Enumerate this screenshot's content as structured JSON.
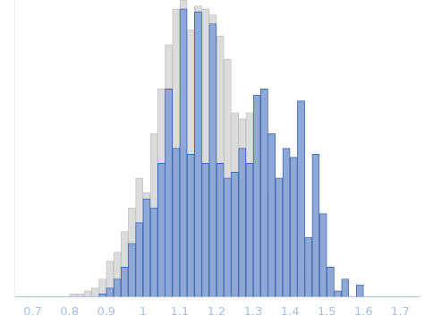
{
  "chart_data": {
    "type": "histogram",
    "bins": [
      0.8,
      0.82,
      0.84,
      0.86,
      0.88,
      0.9,
      0.92,
      0.94,
      0.96,
      0.98,
      1.0,
      1.02,
      1.04,
      1.06,
      1.08,
      1.1,
      1.12,
      1.14,
      1.16,
      1.18,
      1.2,
      1.22,
      1.24,
      1.26,
      1.28,
      1.3,
      1.32,
      1.34,
      1.36,
      1.38,
      1.4,
      1.42,
      1.44,
      1.46,
      1.48,
      1.5,
      1.52,
      1.54,
      1.56,
      1.58,
      1.6,
      1.62
    ],
    "series": [
      {
        "color": "#8fa8d6",
        "values": [
          0,
          0,
          0,
          0,
          1,
          3,
          6,
          10,
          18,
          25,
          33,
          30,
          45,
          70,
          50,
          97,
          48,
          96,
          45,
          92,
          45,
          40,
          42,
          50,
          45,
          68,
          70,
          55,
          40,
          50,
          47,
          66,
          20,
          48,
          28,
          10,
          2,
          6,
          0,
          4,
          0
        ]
      },
      {
        "color": "#dcdcdc",
        "values": [
          1,
          1,
          2,
          3,
          6,
          12,
          15,
          22,
          30,
          40,
          35,
          55,
          70,
          85,
          97,
          100,
          90,
          98,
          97,
          95,
          88,
          80,
          62,
          60,
          62,
          40,
          30,
          35,
          28,
          25,
          18,
          12,
          8,
          9,
          6,
          3,
          2,
          1,
          0,
          0,
          0
        ]
      }
    ],
    "xlim": [
      0.7,
      1.7
    ],
    "xticks": [
      0.7,
      0.8,
      0.9,
      1,
      1.1,
      1.2,
      1.3,
      1.4,
      1.5,
      1.6,
      1.7
    ],
    "ylim": [
      0,
      100
    ],
    "grid": false,
    "tick_labels": "x"
  }
}
